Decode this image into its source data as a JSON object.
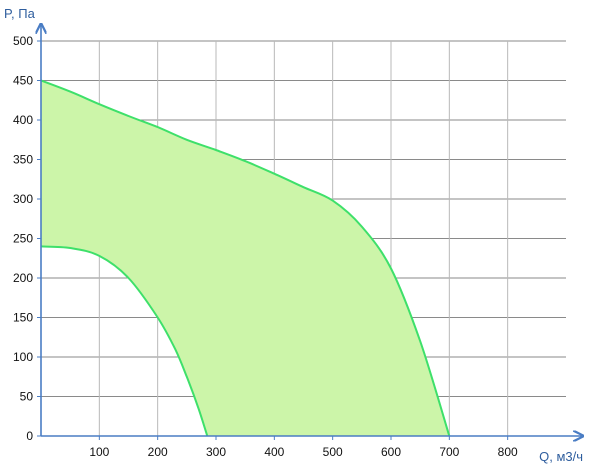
{
  "chart_data": {
    "type": "area",
    "xlabel": "Q, м3/ч",
    "ylabel": "P, Па",
    "xlim": [
      0,
      900
    ],
    "ylim": [
      0,
      500
    ],
    "x_ticks": [
      100,
      200,
      300,
      400,
      500,
      600,
      700,
      800
    ],
    "y_ticks": [
      0,
      50,
      100,
      150,
      200,
      250,
      300,
      350,
      400,
      450,
      500
    ],
    "grid": true,
    "colors": {
      "fill": "#ccf5a9",
      "line": "#3ee06a",
      "axis": "#4a7dc4",
      "grid": "#8a8a8a"
    },
    "series": [
      {
        "x": [
          0,
          50,
          100,
          150,
          200,
          250,
          300,
          350,
          400,
          450,
          500,
          550,
          600,
          650,
          700
        ],
        "y": [
          450,
          436,
          420,
          405,
          391,
          375,
          362,
          348,
          332,
          315,
          298,
          265,
          212,
          120,
          0
        ]
      },
      {
        "x": [
          0,
          50,
          100,
          150,
          200,
          230,
          250,
          270,
          285
        ],
        "y": [
          240,
          238,
          228,
          200,
          150,
          110,
          75,
          35,
          0
        ]
      }
    ]
  }
}
